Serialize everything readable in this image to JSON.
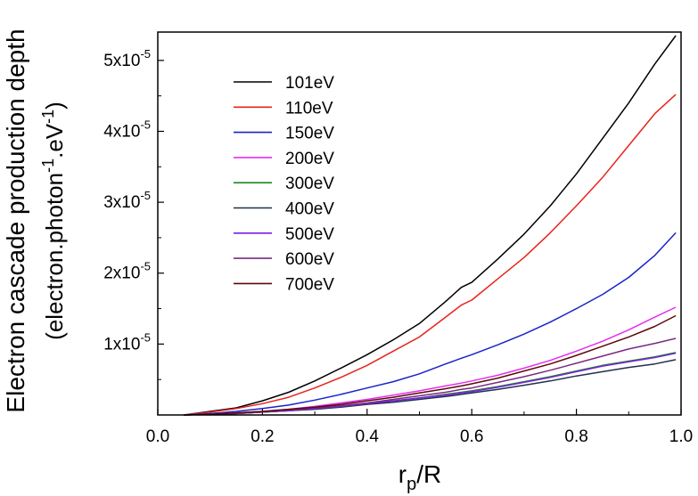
{
  "chart_data": {
    "type": "line",
    "title": "",
    "xlabel": {
      "main": "r",
      "sub": "p",
      "rest": "/R"
    },
    "ylabel": {
      "line1": "Electron cascade production depth",
      "line2_parts": [
        {
          "text": "(electron.photon",
          "sup": false
        },
        {
          "text": "-1",
          "sup": true
        },
        {
          "text": ".eV",
          "sup": false
        },
        {
          "text": "-1",
          "sup": true
        },
        {
          "text": ")",
          "sup": false
        }
      ]
    },
    "xlim": [
      0.0,
      1.0
    ],
    "ylim": [
      0,
      5.4e-05
    ],
    "grid": false,
    "legend_position": "top-left",
    "x_ticks": [
      {
        "value": 0.0,
        "label": "0.0"
      },
      {
        "value": 0.2,
        "label": "0.2"
      },
      {
        "value": 0.4,
        "label": "0.4"
      },
      {
        "value": 0.6,
        "label": "0.6"
      },
      {
        "value": 0.8,
        "label": "0.8"
      },
      {
        "value": 1.0,
        "label": "1.0"
      }
    ],
    "y_ticks": [
      {
        "value": 1e-05,
        "mant": "1x10",
        "exp": "-5"
      },
      {
        "value": 2e-05,
        "mant": "2x10",
        "exp": "-5"
      },
      {
        "value": 3e-05,
        "mant": "3x10",
        "exp": "-5"
      },
      {
        "value": 4e-05,
        "mant": "4x10",
        "exp": "-5"
      },
      {
        "value": 5e-05,
        "mant": "5x10",
        "exp": "-5"
      }
    ],
    "x": [
      0.05,
      0.1,
      0.15,
      0.2,
      0.25,
      0.3,
      0.35,
      0.4,
      0.45,
      0.5,
      0.55,
      0.58,
      0.6,
      0.65,
      0.7,
      0.75,
      0.8,
      0.85,
      0.9,
      0.95,
      0.99
    ],
    "series": [
      {
        "name": "101eV",
        "color": "#000000",
        "values": [
          0,
          5e-07,
          1e-06,
          2e-06,
          3.2e-06,
          4.8e-06,
          6.6e-06,
          8.5e-06,
          1.06e-05,
          1.29e-05,
          1.6e-05,
          1.8e-05,
          1.87e-05,
          2.2e-05,
          2.55e-05,
          2.95e-05,
          3.4e-05,
          3.9e-05,
          4.4e-05,
          4.95e-05,
          5.35e-05
        ]
      },
      {
        "name": "110eV",
        "color": "#e8231c",
        "values": [
          0,
          4e-07,
          9e-07,
          1.6e-06,
          2.5e-06,
          3.8e-06,
          5.3e-06,
          7e-06,
          9e-06,
          1.1e-05,
          1.38e-05,
          1.55e-05,
          1.62e-05,
          1.92e-05,
          2.22e-05,
          2.57e-05,
          2.95e-05,
          3.35e-05,
          3.8e-05,
          4.25e-05,
          4.52e-05
        ]
      },
      {
        "name": "150eV",
        "color": "#1a23c8",
        "values": [
          0,
          2e-07,
          5e-07,
          9e-07,
          1.4e-06,
          2.1e-06,
          2.9e-06,
          3.8e-06,
          4.7e-06,
          5.8e-06,
          7.2e-06,
          8e-06,
          8.5e-06,
          9.9e-06,
          1.14e-05,
          1.31e-05,
          1.5e-05,
          1.7e-05,
          1.94e-05,
          2.25e-05,
          2.57e-05
        ]
      },
      {
        "name": "200eV",
        "color": "#e62ef0",
        "values": [
          0,
          1e-07,
          3e-07,
          5e-07,
          8e-07,
          1.2e-06,
          1.7e-06,
          2.2e-06,
          2.8e-06,
          3.4e-06,
          4.1e-06,
          4.5e-06,
          4.8e-06,
          5.6e-06,
          6.6e-06,
          7.7e-06,
          9e-06,
          1.04e-05,
          1.2e-05,
          1.38e-05,
          1.52e-05
        ]
      },
      {
        "name": "300eV",
        "color": "#1a8a1a",
        "values": [
          0,
          1e-07,
          2e-07,
          4e-07,
          6e-07,
          9e-07,
          1.2e-06,
          1.6e-06,
          2e-06,
          2.4e-06,
          2.9e-06,
          3.2e-06,
          3.4e-06,
          4e-06,
          4.7e-06,
          5.4e-06,
          6.2e-06,
          7e-06,
          7.6e-06,
          8.2e-06,
          8.8e-06
        ]
      },
      {
        "name": "400eV",
        "color": "#1f3050",
        "values": [
          0,
          1e-07,
          2e-07,
          4e-07,
          6e-07,
          8e-07,
          1.1e-06,
          1.5e-06,
          1.8e-06,
          2.2e-06,
          2.6e-06,
          2.9e-06,
          3.1e-06,
          3.6e-06,
          4.2e-06,
          4.8e-06,
          5.5e-06,
          6.1e-06,
          6.7e-06,
          7.2e-06,
          7.8e-06
        ]
      },
      {
        "name": "500eV",
        "color": "#7a1fe0",
        "values": [
          0,
          1e-07,
          2e-07,
          4e-07,
          6e-07,
          9e-07,
          1.2e-06,
          1.6e-06,
          2e-06,
          2.4e-06,
          2.8e-06,
          3.1e-06,
          3.3e-06,
          3.9e-06,
          4.6e-06,
          5.3e-06,
          6.1e-06,
          6.9e-06,
          7.5e-06,
          8.1e-06,
          8.7e-06
        ]
      },
      {
        "name": "600eV",
        "color": "#7a2a82",
        "values": [
          0,
          1e-07,
          2e-07,
          4e-07,
          7e-07,
          1e-06,
          1.3e-06,
          1.7e-06,
          2.2e-06,
          2.7e-06,
          3.2e-06,
          3.6e-06,
          3.8e-06,
          4.6e-06,
          5.4e-06,
          6.3e-06,
          7.3e-06,
          8.3e-06,
          9.3e-06,
          1.01e-05,
          1.08e-05
        ]
      },
      {
        "name": "700eV",
        "color": "#5a0a0a",
        "values": [
          0,
          1e-07,
          3e-07,
          5e-07,
          8e-07,
          1.1e-06,
          1.5e-06,
          2e-06,
          2.5e-06,
          3.1e-06,
          3.7e-06,
          4.1e-06,
          4.4e-06,
          5.2e-06,
          6.2e-06,
          7.2e-06,
          8.4e-06,
          9.7e-06,
          1.1e-05,
          1.25e-05,
          1.4e-05
        ]
      }
    ]
  }
}
